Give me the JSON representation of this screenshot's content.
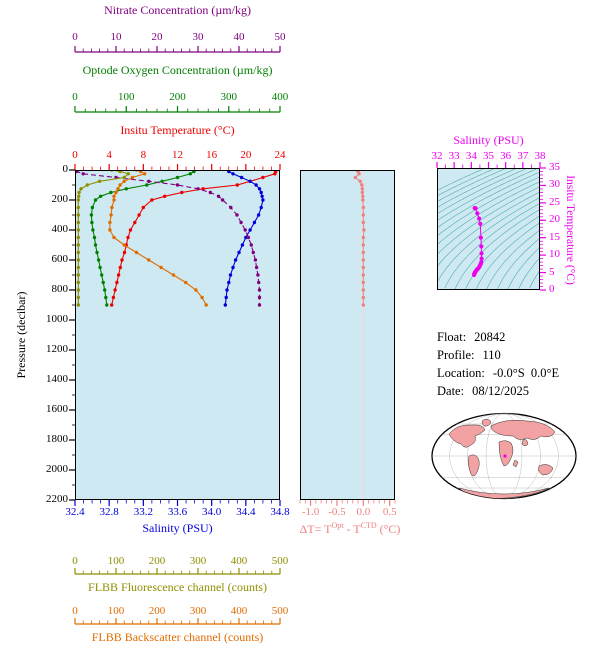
{
  "colors": {
    "plot_bg": "#cfe9f2",
    "nitrate": "#800080",
    "oxygen": "#008000",
    "temperature": "#ee0000",
    "salinity": "#0000dd",
    "fluorescence": "#8f8f00",
    "backscatter": "#e06c00",
    "delta_t": "#f08080",
    "ts": "#ee00ee",
    "contour": "#2e9e9e",
    "map_land": "#f2a2a2",
    "pressure_axis": "#000000"
  },
  "profile_plot": {
    "ylabel": "Pressure (decibar)",
    "y_ticks": [
      "0",
      "200",
      "400",
      "600",
      "800",
      "1000",
      "1200",
      "1400",
      "1600",
      "1800",
      "2000",
      "2200"
    ],
    "axes": {
      "nitrate": {
        "title": "Nitrate Concentration (µm/kg)",
        "range": [
          0,
          50
        ],
        "ticks": [
          "0",
          "10",
          "20",
          "30",
          "40",
          "50"
        ]
      },
      "oxygen": {
        "title": "Optode Oxygen Concentration (µm/kg)",
        "range": [
          0,
          400
        ],
        "ticks": [
          "0",
          "100",
          "200",
          "300",
          "400"
        ]
      },
      "temperature": {
        "title": "Insitu Temperature (°C)",
        "range": [
          0,
          24
        ],
        "ticks": [
          "0",
          "4",
          "8",
          "12",
          "16",
          "20",
          "24"
        ]
      },
      "salinity": {
        "title": "Salinity (PSU)",
        "range": [
          32.4,
          34.8
        ],
        "ticks": [
          "32.4",
          "32.8",
          "33.2",
          "33.6",
          "34.0",
          "34.4",
          "34.8"
        ]
      },
      "fluorescence": {
        "title": "FLBB Fluorescence channel (counts)",
        "range": [
          0,
          500
        ],
        "ticks": [
          "0",
          "100",
          "200",
          "300",
          "400",
          "500"
        ]
      },
      "backscatter": {
        "title": "FLBB Backscatter channel (counts)",
        "range": [
          0,
          500
        ],
        "ticks": [
          "0",
          "100",
          "200",
          "300",
          "400",
          "500"
        ]
      }
    }
  },
  "delta_plot": {
    "ticks": [
      "-1.0",
      "-0.5",
      "0.0",
      "0.5"
    ],
    "label": {
      "p1": "ΔT= T",
      "sup1": "Opt",
      "p2": " - T",
      "sup2": "CTD",
      "p3": " (°C)"
    }
  },
  "ts_plot": {
    "title": "Salinity (PSU)",
    "right_title": "Insitu Temperature (°C)",
    "s_ticks": [
      "32",
      "33",
      "34",
      "35",
      "36",
      "37",
      "38"
    ],
    "t_ticks": [
      "0",
      "5",
      "10",
      "15",
      "20",
      "25",
      "30",
      "35"
    ]
  },
  "float_info": {
    "float_label": "Float:",
    "float_value": "20842",
    "profile_label": "Profile:",
    "profile_value": "110",
    "location_label": "Location:",
    "location_value": "-0.0°S  0.0°E",
    "date_label": "Date:",
    "date_value": "08/12/2025"
  },
  "chart_data": [
    {
      "type": "line",
      "title": "Argo float vertical profiles",
      "ylabel": "Pressure (decibar)",
      "ylim": [
        0,
        2200
      ],
      "y_inverted": true,
      "grid": false,
      "pressure_db": [
        0,
        10,
        25,
        50,
        75,
        100,
        125,
        150,
        175,
        200,
        250,
        300,
        350,
        400,
        450,
        500,
        550,
        600,
        650,
        700,
        750,
        800,
        850,
        900
      ],
      "series": [
        {
          "key": "temperature",
          "name": "Insitu Temperature (°C)",
          "axis_range": [
            0,
            24
          ],
          "values": [
            23.5,
            23.5,
            23.4,
            22.0,
            20.5,
            19.0,
            15.0,
            12.5,
            10.5,
            9.0,
            8.0,
            7.5,
            7.0,
            6.5,
            6.2,
            6.0,
            5.8,
            5.5,
            5.3,
            5.1,
            4.9,
            4.7,
            4.5,
            4.3
          ]
        },
        {
          "key": "salinity",
          "name": "Salinity (PSU)",
          "axis_range": [
            32.4,
            34.8
          ],
          "values": [
            34.2,
            34.2,
            34.25,
            34.35,
            34.45,
            34.52,
            34.56,
            34.58,
            34.59,
            34.6,
            34.58,
            34.55,
            34.5,
            34.45,
            34.4,
            34.36,
            34.32,
            34.28,
            34.25,
            34.22,
            34.2,
            34.18,
            34.17,
            34.16
          ]
        },
        {
          "key": "oxygen",
          "name": "Optode Oxygen Concentration (µm/kg)",
          "axis_range": [
            0,
            400
          ],
          "values": [
            234,
            232,
            225,
            200,
            170,
            140,
            100,
            70,
            50,
            40,
            34,
            32,
            33,
            35,
            38,
            40,
            43,
            46,
            49,
            52,
            55,
            58,
            60,
            62
          ]
        },
        {
          "key": "nitrate",
          "name": "Nitrate Concentration (µm/kg)",
          "axis_range": [
            0,
            50
          ],
          "dashed": true,
          "values": [
            0.5,
            0.5,
            2,
            10,
            18,
            25,
            30,
            33,
            35,
            36,
            38,
            39.5,
            40.5,
            41.5,
            42.3,
            43,
            43.5,
            44,
            44.3,
            44.6,
            44.8,
            45,
            45,
            45
          ]
        },
        {
          "key": "fluorescence",
          "name": "FLBB Fluorescence channel (counts)",
          "axis_range": [
            0,
            500
          ],
          "values": [
            90,
            110,
            130,
            120,
            60,
            30,
            15,
            10,
            9,
            8,
            8,
            8,
            8,
            8,
            8,
            8,
            8,
            8,
            8,
            8,
            8,
            8,
            8,
            8
          ]
        },
        {
          "key": "backscatter",
          "name": "FLBB Backscatter channel (counts)",
          "axis_range": [
            0,
            500
          ],
          "values": [
            150,
            160,
            170,
            140,
            120,
            110,
            105,
            100,
            95,
            95,
            90,
            88,
            85,
            85,
            95,
            120,
            150,
            180,
            210,
            240,
            270,
            295,
            310,
            320
          ]
        }
      ]
    },
    {
      "type": "scatter",
      "title": "Optode minus CTD temperature difference",
      "xlabel": "ΔT= TOpt - TCTD (°C)",
      "xlim": [
        -1.2,
        0.6
      ],
      "x_ticks": [
        -1.0,
        -0.5,
        0.0,
        0.5
      ],
      "ylim": [
        0,
        2200
      ],
      "y_inverted": true,
      "pressure_db": [
        0,
        10,
        25,
        50,
        75,
        100,
        125,
        150,
        175,
        200,
        250,
        300,
        350,
        400,
        450,
        500,
        550,
        600,
        650,
        700,
        750,
        800,
        850,
        900
      ],
      "values": [
        -0.12,
        -0.1,
        -0.08,
        -0.15,
        -0.06,
        -0.03,
        -0.02,
        -0.02,
        -0.01,
        -0.01,
        0,
        0,
        0,
        0.01,
        0,
        0,
        0,
        0,
        0,
        0,
        0,
        0,
        0,
        0
      ]
    },
    {
      "type": "scatter",
      "title": "T-S diagram with density contours",
      "xlabel": "Salinity (PSU)",
      "ylabel": "Insitu Temperature (°C)",
      "xlim": [
        32,
        38
      ],
      "ylim": [
        0,
        35
      ],
      "contour_sigma_levels": [
        17.5,
        18,
        18.5,
        19,
        19.5,
        20,
        20.5,
        21,
        21.5,
        22,
        22.5,
        23,
        23.5,
        24,
        24.5,
        25,
        25.5,
        26,
        26.5,
        27,
        27.5
      ],
      "points": [
        [
          34.2,
          23.5
        ],
        [
          34.2,
          23.5
        ],
        [
          34.25,
          23.4
        ],
        [
          34.35,
          22.0
        ],
        [
          34.45,
          20.5
        ],
        [
          34.52,
          19.0
        ],
        [
          34.56,
          15.0
        ],
        [
          34.58,
          12.5
        ],
        [
          34.59,
          10.5
        ],
        [
          34.6,
          9.0
        ],
        [
          34.58,
          8.0
        ],
        [
          34.55,
          7.5
        ],
        [
          34.5,
          7.0
        ],
        [
          34.45,
          6.5
        ],
        [
          34.4,
          6.2
        ],
        [
          34.36,
          6.0
        ],
        [
          34.32,
          5.8
        ],
        [
          34.28,
          5.5
        ],
        [
          34.25,
          5.3
        ],
        [
          34.22,
          5.1
        ],
        [
          34.2,
          4.9
        ],
        [
          34.18,
          4.7
        ],
        [
          34.17,
          4.5
        ],
        [
          34.16,
          4.3
        ]
      ]
    }
  ]
}
